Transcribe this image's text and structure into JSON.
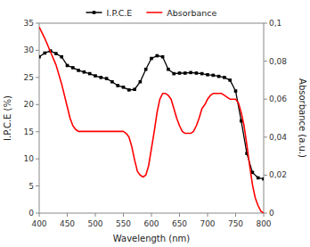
{
  "chart_data": {
    "type": "line",
    "x_label": "Wavelength (nm)",
    "y_label": "I.P.C.E (%)",
    "y2_label": "Absorbance (a.u.)",
    "xlim": [
      400,
      800
    ],
    "xticks": [
      400,
      450,
      500,
      550,
      600,
      650,
      700,
      750,
      800
    ],
    "ylim": [
      0,
      35
    ],
    "yticks": [
      0,
      5,
      10,
      15,
      20,
      25,
      30,
      35
    ],
    "y2lim": [
      0,
      0.1
    ],
    "y2ticks": [
      0,
      {
        "value": 0.02,
        "label": "0,02"
      },
      {
        "value": 0.04,
        "label": "0,04"
      },
      {
        "value": 0.06,
        "label": "0,06"
      },
      {
        "value": 0.08,
        "label": "0,08"
      },
      {
        "value": 0.1,
        "label": "0,1"
      }
    ],
    "grid": false,
    "legend": "top",
    "series": [
      {
        "name": "I.P.C.E",
        "color": "black",
        "marker": "square",
        "line_style": "solid",
        "x": [
          400,
          410,
          420,
          430,
          440,
          450,
          460,
          470,
          480,
          490,
          500,
          510,
          520,
          530,
          540,
          550,
          560,
          570,
          580,
          590,
          600,
          610,
          620,
          630,
          640,
          650,
          660,
          670,
          680,
          690,
          700,
          710,
          720,
          730,
          740,
          750,
          760,
          770,
          780,
          790,
          800
        ],
        "values": [
          28.8,
          29.5,
          29.9,
          29.4,
          28.8,
          27.2,
          26.8,
          26.3,
          26.0,
          25.7,
          25.3,
          25.0,
          24.8,
          24.2,
          23.5,
          23.2,
          22.7,
          22.8,
          24.2,
          26.5,
          28.5,
          29.0,
          28.8,
          26.5,
          25.7,
          25.8,
          25.8,
          25.9,
          25.8,
          25.7,
          25.5,
          25.4,
          25.2,
          25.0,
          24.5,
          22.5,
          17.0,
          11.0,
          7.5,
          6.5,
          6.3
        ]
      },
      {
        "name": "Absorbance",
        "color": "red",
        "axis": "y2",
        "line_style": "solid",
        "x": [
          400,
          410,
          420,
          430,
          440,
          450,
          455,
          460,
          465,
          470,
          475,
          480,
          490,
          500,
          510,
          520,
          530,
          540,
          545,
          550,
          555,
          560,
          565,
          570,
          575,
          580,
          585,
          590,
          595,
          600,
          605,
          610,
          615,
          620,
          625,
          630,
          635,
          640,
          645,
          650,
          655,
          660,
          665,
          670,
          675,
          680,
          685,
          690,
          695,
          700,
          705,
          710,
          715,
          720,
          725,
          730,
          735,
          740,
          745,
          750,
          755,
          760,
          765,
          770,
          775,
          780,
          785,
          790,
          795,
          800
        ],
        "values": [
          0.098,
          0.092,
          0.085,
          0.078,
          0.068,
          0.056,
          0.05,
          0.046,
          0.044,
          0.043,
          0.043,
          0.043,
          0.043,
          0.043,
          0.043,
          0.043,
          0.043,
          0.043,
          0.043,
          0.043,
          0.042,
          0.04,
          0.035,
          0.028,
          0.022,
          0.02,
          0.019,
          0.02,
          0.025,
          0.034,
          0.043,
          0.053,
          0.06,
          0.063,
          0.063,
          0.062,
          0.06,
          0.055,
          0.05,
          0.046,
          0.043,
          0.042,
          0.042,
          0.042,
          0.043,
          0.046,
          0.05,
          0.055,
          0.057,
          0.06,
          0.062,
          0.063,
          0.063,
          0.063,
          0.063,
          0.062,
          0.061,
          0.06,
          0.06,
          0.06,
          0.058,
          0.053,
          0.046,
          0.036,
          0.025,
          0.015,
          0.008,
          0.004,
          0.001,
          0.0
        ]
      }
    ]
  }
}
